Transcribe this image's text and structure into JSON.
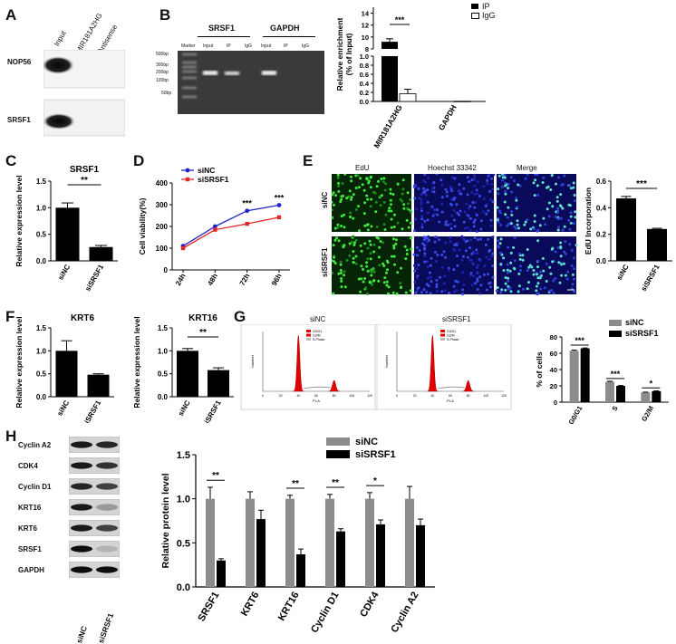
{
  "panel_letters": [
    "A",
    "B",
    "C",
    "D",
    "E",
    "F",
    "G",
    "H"
  ],
  "panelA": {
    "lanes": [
      "Input",
      "MIR181A2HG",
      "Antisense"
    ],
    "rows": [
      "NOP56",
      "SRSF1"
    ]
  },
  "panelB_gel": {
    "groups": [
      "SRSF1",
      "GAPDH"
    ],
    "marker_label": "Marker",
    "lanes": [
      "Input",
      "IP",
      "IgG",
      "Input",
      "IP",
      "IgG"
    ],
    "ladder": [
      "500bp",
      "300bp",
      "200bp",
      "100bp",
      "50bp"
    ]
  },
  "chart_data": [
    {
      "id": "B_enrichment",
      "type": "bar",
      "categories": [
        "MIR181A2HG",
        "GAPDH"
      ],
      "series": [
        {
          "name": "IP",
          "values": [
            9.2,
            0.01
          ],
          "errors": [
            0.5,
            0
          ]
        },
        {
          "name": "IgG",
          "values": [
            0.17,
            0.005
          ],
          "errors": [
            0.1,
            0
          ]
        }
      ],
      "ylabel": "Relative enrichment\n(% of Input)",
      "broken_axis": true,
      "lower_ticks": [
        "0.0",
        "0.2",
        "0.4",
        "0.6",
        "0.8",
        "1.0"
      ],
      "upper_ticks": [
        "8",
        "10",
        "12",
        "14"
      ],
      "annotations": [
        {
          "text": "***",
          "between": [
            "IP",
            "IgG"
          ],
          "category": "MIR181A2HG"
        }
      ]
    },
    {
      "id": "C_SRSF1",
      "type": "bar",
      "title": "SRSF1",
      "categories": [
        "siNC",
        "siSRSF1"
      ],
      "values": [
        1.0,
        0.26
      ],
      "errors": [
        0.09,
        0.03
      ],
      "ylabel": "Relative expression level",
      "ylim": [
        0,
        1.5
      ],
      "ticks": [
        "0.0",
        "0.5",
        "1.0",
        "1.5"
      ],
      "significance": "**"
    },
    {
      "id": "D_viability",
      "type": "line",
      "x": [
        "24h",
        "48h",
        "72h",
        "96h"
      ],
      "series": [
        {
          "name": "siNC",
          "values": [
            110,
            200,
            272,
            298
          ],
          "color": "#2323c8"
        },
        {
          "name": "siSRSF1",
          "values": [
            100,
            185,
            212,
            242
          ],
          "color": "#e32626"
        }
      ],
      "ylabel": "Cell viability(%)",
      "ylim": [
        0,
        400
      ],
      "ticks": [
        "0",
        "100",
        "200",
        "300",
        "400"
      ],
      "annotations": [
        {
          "x": "72h",
          "text": "***"
        },
        {
          "x": "96h",
          "text": "***"
        }
      ]
    },
    {
      "id": "E_edu",
      "type": "bar",
      "categories": [
        "siNC",
        "siSRSF1"
      ],
      "values": [
        0.47,
        0.24
      ],
      "errors": [
        0.015,
        0.005
      ],
      "ylabel": "EdU Incorporation",
      "ylim": [
        0,
        0.6
      ],
      "ticks": [
        "0.0",
        "0.2",
        "0.4",
        "0.6"
      ],
      "significance": "***"
    },
    {
      "id": "F_KRT6",
      "type": "bar",
      "title": "KRT6",
      "categories": [
        "siNC",
        "siSRSF1"
      ],
      "values": [
        1.0,
        0.48
      ],
      "errors": [
        0.22,
        0.02
      ],
      "ylabel": "Relative expression level",
      "ylim": [
        0,
        1.5
      ],
      "ticks": [
        "0.0",
        "0.5",
        "1.0",
        "1.5"
      ]
    },
    {
      "id": "F_KRT16",
      "type": "bar",
      "title": "KRT16",
      "categories": [
        "siNC",
        "siSRSF1"
      ],
      "values": [
        1.0,
        0.58
      ],
      "errors": [
        0.05,
        0.05
      ],
      "ylabel": "Relative expression level",
      "ylim": [
        0,
        1.5
      ],
      "ticks": [
        "0.0",
        "0.5",
        "1.0",
        "1.5"
      ],
      "significance": "**"
    },
    {
      "id": "G_cellcycle",
      "type": "bar",
      "categories": [
        "G0/G1",
        "S",
        "G2/M"
      ],
      "series": [
        {
          "name": "siNC",
          "values": [
            63,
            25,
            12
          ],
          "errors": [
            0.8,
            0.6,
            0.3
          ],
          "color": "#8c8c8c"
        },
        {
          "name": "siSRSF1",
          "values": [
            66,
            20,
            13.5
          ],
          "errors": [
            0.5,
            0.4,
            0.3
          ],
          "color": "#000000"
        }
      ],
      "ylabel": "% of cells",
      "ylim": [
        0,
        80
      ],
      "ticks": [
        "0",
        "20",
        "40",
        "60",
        "80"
      ],
      "annotations": [
        {
          "category": "G0/G1",
          "text": "***"
        },
        {
          "category": "S",
          "text": "***"
        },
        {
          "category": "G2/M",
          "text": "*"
        }
      ]
    },
    {
      "id": "H_protein",
      "type": "bar",
      "categories": [
        "SRSF1",
        "KRT6",
        "KRT16",
        "Cyclin D1",
        "CDK4",
        "Cyclin A2"
      ],
      "series": [
        {
          "name": "siNC",
          "values": [
            1.0,
            1.0,
            1.0,
            1.0,
            1.0,
            1.0
          ],
          "errors": [
            0.13,
            0.08,
            0.04,
            0.05,
            0.07,
            0.14
          ],
          "color": "#8c8c8c"
        },
        {
          "name": "siSRSF1",
          "values": [
            0.3,
            0.77,
            0.37,
            0.63,
            0.71,
            0.7
          ],
          "errors": [
            0.02,
            0.1,
            0.06,
            0.03,
            0.05,
            0.07
          ],
          "color": "#000000"
        }
      ],
      "ylabel": "Relative protein level",
      "ylim": [
        0,
        1.5
      ],
      "ticks": [
        "0.0",
        "0.5",
        "1.0",
        "1.5"
      ],
      "annotations": [
        {
          "category": "SRSF1",
          "text": "**"
        },
        {
          "category": "KRT16",
          "text": "**"
        },
        {
          "category": "Cyclin D1",
          "text": "**"
        },
        {
          "category": "CDK4",
          "text": "*"
        }
      ]
    }
  ],
  "panelE_micro": {
    "columns": [
      "EdU",
      "Hoechst 33342",
      "Merge"
    ],
    "rows": [
      "siNC",
      "siSRSF1"
    ]
  },
  "panelG_flow": {
    "titles": [
      "siNC",
      "siSRSF1"
    ],
    "x_axis": "PI-A",
    "y_axis": "Number",
    "legend": [
      "G0/G1",
      "G2/M",
      "S-Phase"
    ],
    "xticks": [
      "0",
      "20",
      "40",
      "60",
      "80",
      "100",
      "120"
    ]
  },
  "panelH_blot": {
    "rows": [
      "Cyclin A2",
      "CDK4",
      "Cyclin D1",
      "KRT16",
      "KRT6",
      "SRSF1",
      "GAPDH"
    ],
    "lanes": [
      "siNC",
      "siSRSF1"
    ]
  }
}
